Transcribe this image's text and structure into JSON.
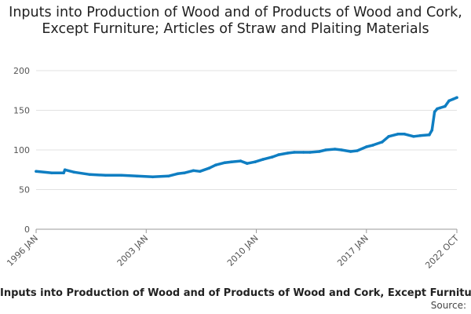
{
  "chart_data": {
    "type": "line",
    "title": "Inputs into Production of Wood and of Products of Wood and Cork, Except Furniture; Articles of Straw and Plaiting Materials",
    "footer": "Inputs into Production of Wood and of Products of Wood and Cork, Except Furniture; Articles of Straw and Plaiting Materials",
    "source": "Source:",
    "ylim": [
      0,
      200
    ],
    "y_ticks": [
      0,
      50,
      100,
      150,
      200
    ],
    "x_ticks": [
      "1996 JAN",
      "2003 JAN",
      "2010 JAN",
      "2017 JAN",
      "2022 OCT"
    ],
    "x_tick_values": [
      "1996-01",
      "2003-01",
      "2010-01",
      "2017-01",
      "2022-10"
    ],
    "grid": "horizontal",
    "line_color": "#0f7ec2",
    "series": [
      {
        "x": [
          "1996-01",
          "1997-01",
          "1997-10",
          "1997-11",
          "1998-06",
          "1999-06",
          "2000-06",
          "2001-06",
          "2002-06",
          "2003-06",
          "2004-06",
          "2005-01",
          "2005-06",
          "2006-01",
          "2006-06",
          "2007-01",
          "2007-06",
          "2008-01",
          "2008-06",
          "2009-01",
          "2009-06",
          "2009-12",
          "2010-06",
          "2011-01",
          "2011-06",
          "2012-01",
          "2012-06",
          "2013-01",
          "2013-06",
          "2014-01",
          "2014-06",
          "2015-01",
          "2015-06",
          "2016-01",
          "2016-06",
          "2017-01",
          "2017-06",
          "2018-01",
          "2018-06",
          "2019-01",
          "2019-06",
          "2020-01",
          "2020-06",
          "2021-01",
          "2021-03",
          "2021-05",
          "2021-07",
          "2021-09",
          "2022-01",
          "2022-04",
          "2022-07",
          "2022-10"
        ],
        "values": [
          73,
          71,
          71,
          75,
          72,
          69,
          68,
          68,
          67,
          66,
          67,
          70,
          71,
          74,
          73,
          77,
          81,
          84,
          85,
          86,
          83,
          85,
          88,
          91,
          94,
          96,
          97,
          97,
          97,
          98,
          100,
          101,
          100,
          98,
          99,
          104,
          106,
          110,
          117,
          120,
          120,
          117,
          118,
          119,
          125,
          148,
          152,
          153,
          155,
          162,
          164,
          166
        ]
      }
    ]
  }
}
